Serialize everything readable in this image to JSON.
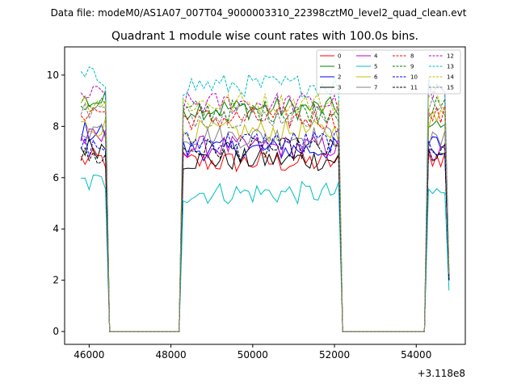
{
  "figure": {
    "suptitle": "Data file: modeM0/AS1A07_007T04_9000003310_22398cztM0_level2_quad_clean.evt",
    "offset_label": "+3.118e8"
  },
  "chart_data": {
    "type": "line",
    "title": "Quadrant 1 module wise count rates with 100.0s bins.",
    "xlabel": "",
    "ylabel": "",
    "x_offset": 311800000,
    "xlim": [
      45400,
      55200
    ],
    "ylim": [
      -0.5,
      11.1
    ],
    "xticks": [
      46000,
      48000,
      50000,
      52000,
      54000
    ],
    "xtick_labels": [
      "46000",
      "48000",
      "50000",
      "52000",
      "54000"
    ],
    "yticks": [
      0,
      2,
      4,
      6,
      8,
      10
    ],
    "ytick_labels": [
      "0",
      "2",
      "4",
      "6",
      "8",
      "10"
    ],
    "grid": false,
    "legend_position": "top-right",
    "legend_columns": 4,
    "bin_width": 100,
    "segments": [
      {
        "start": 45800,
        "end": 46400,
        "drop_to": 46500
      },
      {
        "start": 48300,
        "end": 52100,
        "rise_from": 48200,
        "drop_to": 52200
      },
      {
        "start": 54300,
        "end": 54700,
        "rise_from": 54200
      }
    ],
    "zero_ranges": [
      [
        46500,
        48200
      ],
      [
        52300,
        54200
      ]
    ],
    "endpoint": {
      "x": 54800
    },
    "series": [
      {
        "name": "0",
        "color": "#ff0000",
        "dash": "solid",
        "level": 6.7,
        "seg_levels": [
          6.7,
          6.6,
          6.8
        ],
        "final": 2.2
      },
      {
        "name": "1",
        "color": "#008000",
        "dash": "solid",
        "level": 8.9,
        "seg_levels": [
          9.0,
          8.7,
          7.9
        ],
        "final": 2.0
      },
      {
        "name": "2",
        "color": "#0000ff",
        "dash": "solid",
        "level": 7.6,
        "seg_levels": [
          7.8,
          7.1,
          7.3
        ],
        "final": 2.0
      },
      {
        "name": "3",
        "color": "#000000",
        "dash": "solid",
        "level": 7.0,
        "seg_levels": [
          7.2,
          6.7,
          7.0
        ],
        "final": 2.2
      },
      {
        "name": "4",
        "color": "#bf00bf",
        "dash": "solid",
        "level": 7.4,
        "seg_levels": [
          7.5,
          7.2,
          6.9
        ],
        "final": 2.0
      },
      {
        "name": "5",
        "color": "#00bfbf",
        "dash": "solid",
        "level": 5.6,
        "seg_levels": [
          5.8,
          5.4,
          5.4
        ],
        "final": 1.6
      },
      {
        "name": "6",
        "color": "#bfbf00",
        "dash": "solid",
        "level": 7.9,
        "seg_levels": [
          8.0,
          7.8,
          8.3
        ],
        "final": 2.1
      },
      {
        "name": "7",
        "color": "#808080",
        "dash": "solid",
        "level": 7.8,
        "seg_levels": [
          7.9,
          7.6,
          7.4
        ],
        "final": 2.1
      },
      {
        "name": "8",
        "color": "#ff0000",
        "dash": "dashed",
        "level": 8.4,
        "seg_levels": [
          8.6,
          8.3,
          8.4
        ],
        "final": 2.3
      },
      {
        "name": "9",
        "color": "#008000",
        "dash": "dashed",
        "level": 8.7,
        "seg_levels": [
          8.9,
          8.6,
          8.7
        ],
        "final": 2.3
      },
      {
        "name": "10",
        "color": "#0000ff",
        "dash": "dashed",
        "level": 7.3,
        "seg_levels": [
          7.2,
          7.4,
          7.2
        ],
        "final": 2.0
      },
      {
        "name": "11",
        "color": "#000000",
        "dash": "dashed",
        "level": 7.0,
        "seg_levels": [
          6.8,
          7.1,
          6.9
        ],
        "final": 2.0
      },
      {
        "name": "12",
        "color": "#bf00bf",
        "dash": "dashed",
        "level": 9.0,
        "seg_levels": [
          9.2,
          8.9,
          9.3
        ],
        "final": 2.3
      },
      {
        "name": "13",
        "color": "#00bfbf",
        "dash": "dashed",
        "level": 9.9,
        "seg_levels": [
          9.9,
          9.6,
          9.6
        ],
        "final": 2.3
      },
      {
        "name": "14",
        "color": "#bfbf00",
        "dash": "dashed",
        "level": 8.9,
        "seg_levels": [
          9.0,
          8.9,
          9.1
        ],
        "final": 2.3
      },
      {
        "name": "15",
        "color": "#808080",
        "dash": "dashed",
        "level": 8.5,
        "seg_levels": [
          8.6,
          8.4,
          8.7
        ],
        "final": 2.2
      }
    ]
  }
}
